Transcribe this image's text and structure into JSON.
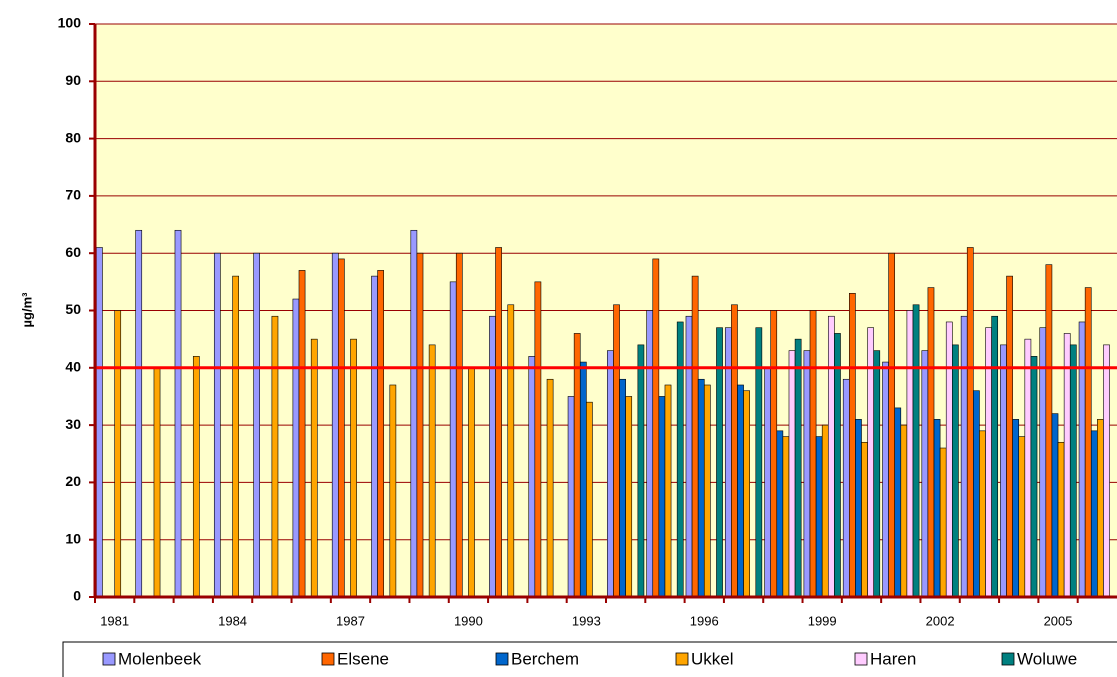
{
  "chart_data": {
    "type": "bar",
    "y_label": "µg/m³",
    "categories": [
      "1981",
      null,
      null,
      "1984",
      null,
      null,
      "1987",
      null,
      null,
      "1990",
      null,
      null,
      "1993",
      null,
      null,
      "1996",
      null,
      null,
      "1999",
      null,
      null,
      "2002",
      null,
      null,
      "2005",
      null
    ],
    "series": [
      {
        "name": "Molenbeek",
        "color": "#9999ff",
        "values": [
          61,
          64,
          64,
          60,
          60,
          52,
          60,
          56,
          64,
          55,
          49,
          42,
          35,
          43,
          50,
          49,
          47,
          40,
          43,
          38,
          41,
          43,
          49,
          44,
          47,
          48
        ]
      },
      {
        "name": "Elsene",
        "color": "#ff6600",
        "values": [
          null,
          null,
          null,
          null,
          null,
          57,
          59,
          57,
          60,
          60,
          61,
          55,
          46,
          51,
          59,
          56,
          51,
          50,
          50,
          53,
          60,
          54,
          61,
          56,
          58,
          54
        ]
      },
      {
        "name": "Berchem",
        "color": "#0066cc",
        "values": [
          null,
          null,
          null,
          null,
          null,
          null,
          null,
          null,
          null,
          null,
          null,
          null,
          41,
          38,
          35,
          38,
          37,
          29,
          28,
          31,
          33,
          31,
          36,
          31,
          32,
          29
        ]
      },
      {
        "name": "Ukkel",
        "color": "#ffa500",
        "values": [
          50,
          40,
          42,
          56,
          49,
          45,
          45,
          37,
          44,
          40,
          51,
          38,
          34,
          35,
          37,
          37,
          36,
          28,
          30,
          27,
          30,
          26,
          29,
          28,
          27,
          31
        ]
      },
      {
        "name": "Haren",
        "color": "#ffccff",
        "values": [
          null,
          null,
          null,
          null,
          null,
          null,
          null,
          null,
          null,
          null,
          null,
          null,
          null,
          null,
          null,
          null,
          null,
          43,
          49,
          47,
          50,
          48,
          47,
          45,
          46,
          44
        ]
      },
      {
        "name": "Woluwe",
        "color": "#008080",
        "values": [
          null,
          null,
          null,
          null,
          null,
          null,
          null,
          null,
          null,
          null,
          null,
          null,
          null,
          44,
          48,
          47,
          47,
          45,
          46,
          43,
          51,
          44,
          49,
          42,
          44,
          null
        ]
      }
    ],
    "reference_line": {
      "value": 40,
      "color": "#ff0000"
    },
    "ylim": [
      0,
      100
    ],
    "yticks": [
      0,
      10,
      20,
      30,
      40,
      50,
      60,
      70,
      80,
      90,
      100
    ],
    "grid": true,
    "legend": "bottom"
  }
}
